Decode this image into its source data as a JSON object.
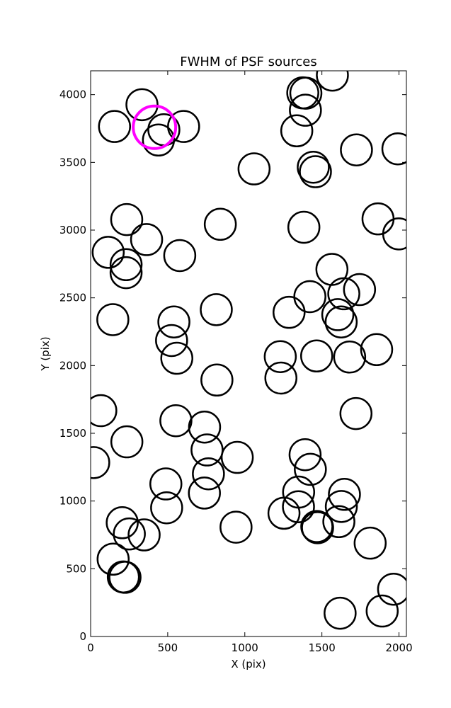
{
  "chart_data": {
    "type": "scatter",
    "title": "FWHM of PSF sources",
    "xlabel": "X (pix)",
    "ylabel": "Y (pix)",
    "xlim": [
      0,
      2048
    ],
    "ylim": [
      0,
      4176
    ],
    "x_ticks": [
      0,
      500,
      1000,
      1500,
      2000
    ],
    "y_ticks": [
      0,
      500,
      1000,
      1500,
      2000,
      2500,
      3000,
      3500,
      4000
    ],
    "x_tick_labels": [
      "0",
      "500",
      "1000",
      "1500",
      "2000"
    ],
    "y_tick_labels": [
      "0",
      "500",
      "1000",
      "1500",
      "2000",
      "2500",
      "3000",
      "3500",
      "4000"
    ],
    "grid": false,
    "legend": "none",
    "marker_style": "open circle",
    "colors": {
      "sources": "#000000",
      "highlight": "#ff00ff"
    },
    "sources": [
      {
        "x": 333,
        "y": 3926
      },
      {
        "x": 155,
        "y": 3765
      },
      {
        "x": 440,
        "y": 3665
      },
      {
        "x": 475,
        "y": 3741
      },
      {
        "x": 603,
        "y": 3765
      },
      {
        "x": 1060,
        "y": 3452
      },
      {
        "x": 1568,
        "y": 4144
      },
      {
        "x": 1376,
        "y": 4013
      },
      {
        "x": 1396,
        "y": 4011
      },
      {
        "x": 1393,
        "y": 3885
      },
      {
        "x": 1337,
        "y": 3733
      },
      {
        "x": 1444,
        "y": 3464
      },
      {
        "x": 1458,
        "y": 3431
      },
      {
        "x": 1724,
        "y": 3592
      },
      {
        "x": 1993,
        "y": 3600
      },
      {
        "x": 234,
        "y": 3078
      },
      {
        "x": 363,
        "y": 2930
      },
      {
        "x": 114,
        "y": 2836
      },
      {
        "x": 230,
        "y": 2745
      },
      {
        "x": 230,
        "y": 2686
      },
      {
        "x": 578,
        "y": 2812
      },
      {
        "x": 841,
        "y": 3043
      },
      {
        "x": 1383,
        "y": 3021
      },
      {
        "x": 1864,
        "y": 3083
      },
      {
        "x": 1998,
        "y": 2972
      },
      {
        "x": 1565,
        "y": 2710
      },
      {
        "x": 1642,
        "y": 2530
      },
      {
        "x": 1744,
        "y": 2561
      },
      {
        "x": 1422,
        "y": 2509
      },
      {
        "x": 1287,
        "y": 2393
      },
      {
        "x": 1603,
        "y": 2376
      },
      {
        "x": 1625,
        "y": 2322
      },
      {
        "x": 144,
        "y": 2339
      },
      {
        "x": 540,
        "y": 2322
      },
      {
        "x": 525,
        "y": 2185
      },
      {
        "x": 559,
        "y": 2054
      },
      {
        "x": 815,
        "y": 2413
      },
      {
        "x": 819,
        "y": 1893
      },
      {
        "x": 1230,
        "y": 2066
      },
      {
        "x": 1234,
        "y": 1908
      },
      {
        "x": 1466,
        "y": 2071
      },
      {
        "x": 1680,
        "y": 2063
      },
      {
        "x": 1855,
        "y": 2118
      },
      {
        "x": 66,
        "y": 1667
      },
      {
        "x": 553,
        "y": 1593
      },
      {
        "x": 739,
        "y": 1546
      },
      {
        "x": 755,
        "y": 1377
      },
      {
        "x": 235,
        "y": 1437
      },
      {
        "x": 20,
        "y": 1284
      },
      {
        "x": 764,
        "y": 1201
      },
      {
        "x": 951,
        "y": 1322
      },
      {
        "x": 1391,
        "y": 1342
      },
      {
        "x": 1425,
        "y": 1234
      },
      {
        "x": 1721,
        "y": 1646
      },
      {
        "x": 488,
        "y": 1126
      },
      {
        "x": 738,
        "y": 1059
      },
      {
        "x": 493,
        "y": 950
      },
      {
        "x": 1349,
        "y": 1066
      },
      {
        "x": 1348,
        "y": 958
      },
      {
        "x": 1254,
        "y": 910
      },
      {
        "x": 1646,
        "y": 1049
      },
      {
        "x": 1626,
        "y": 960
      },
      {
        "x": 1610,
        "y": 848
      },
      {
        "x": 1467,
        "y": 812
      },
      {
        "x": 1472,
        "y": 803
      },
      {
        "x": 943,
        "y": 807
      },
      {
        "x": 205,
        "y": 840
      },
      {
        "x": 251,
        "y": 757
      },
      {
        "x": 347,
        "y": 750
      },
      {
        "x": 146,
        "y": 571
      },
      {
        "x": 212,
        "y": 440
      },
      {
        "x": 223,
        "y": 437
      },
      {
        "x": 1813,
        "y": 689
      },
      {
        "x": 1965,
        "y": 349
      },
      {
        "x": 1618,
        "y": 172
      },
      {
        "x": 1891,
        "y": 188
      }
    ],
    "highlight": [
      {
        "x": 414,
        "y": 3759
      }
    ]
  }
}
